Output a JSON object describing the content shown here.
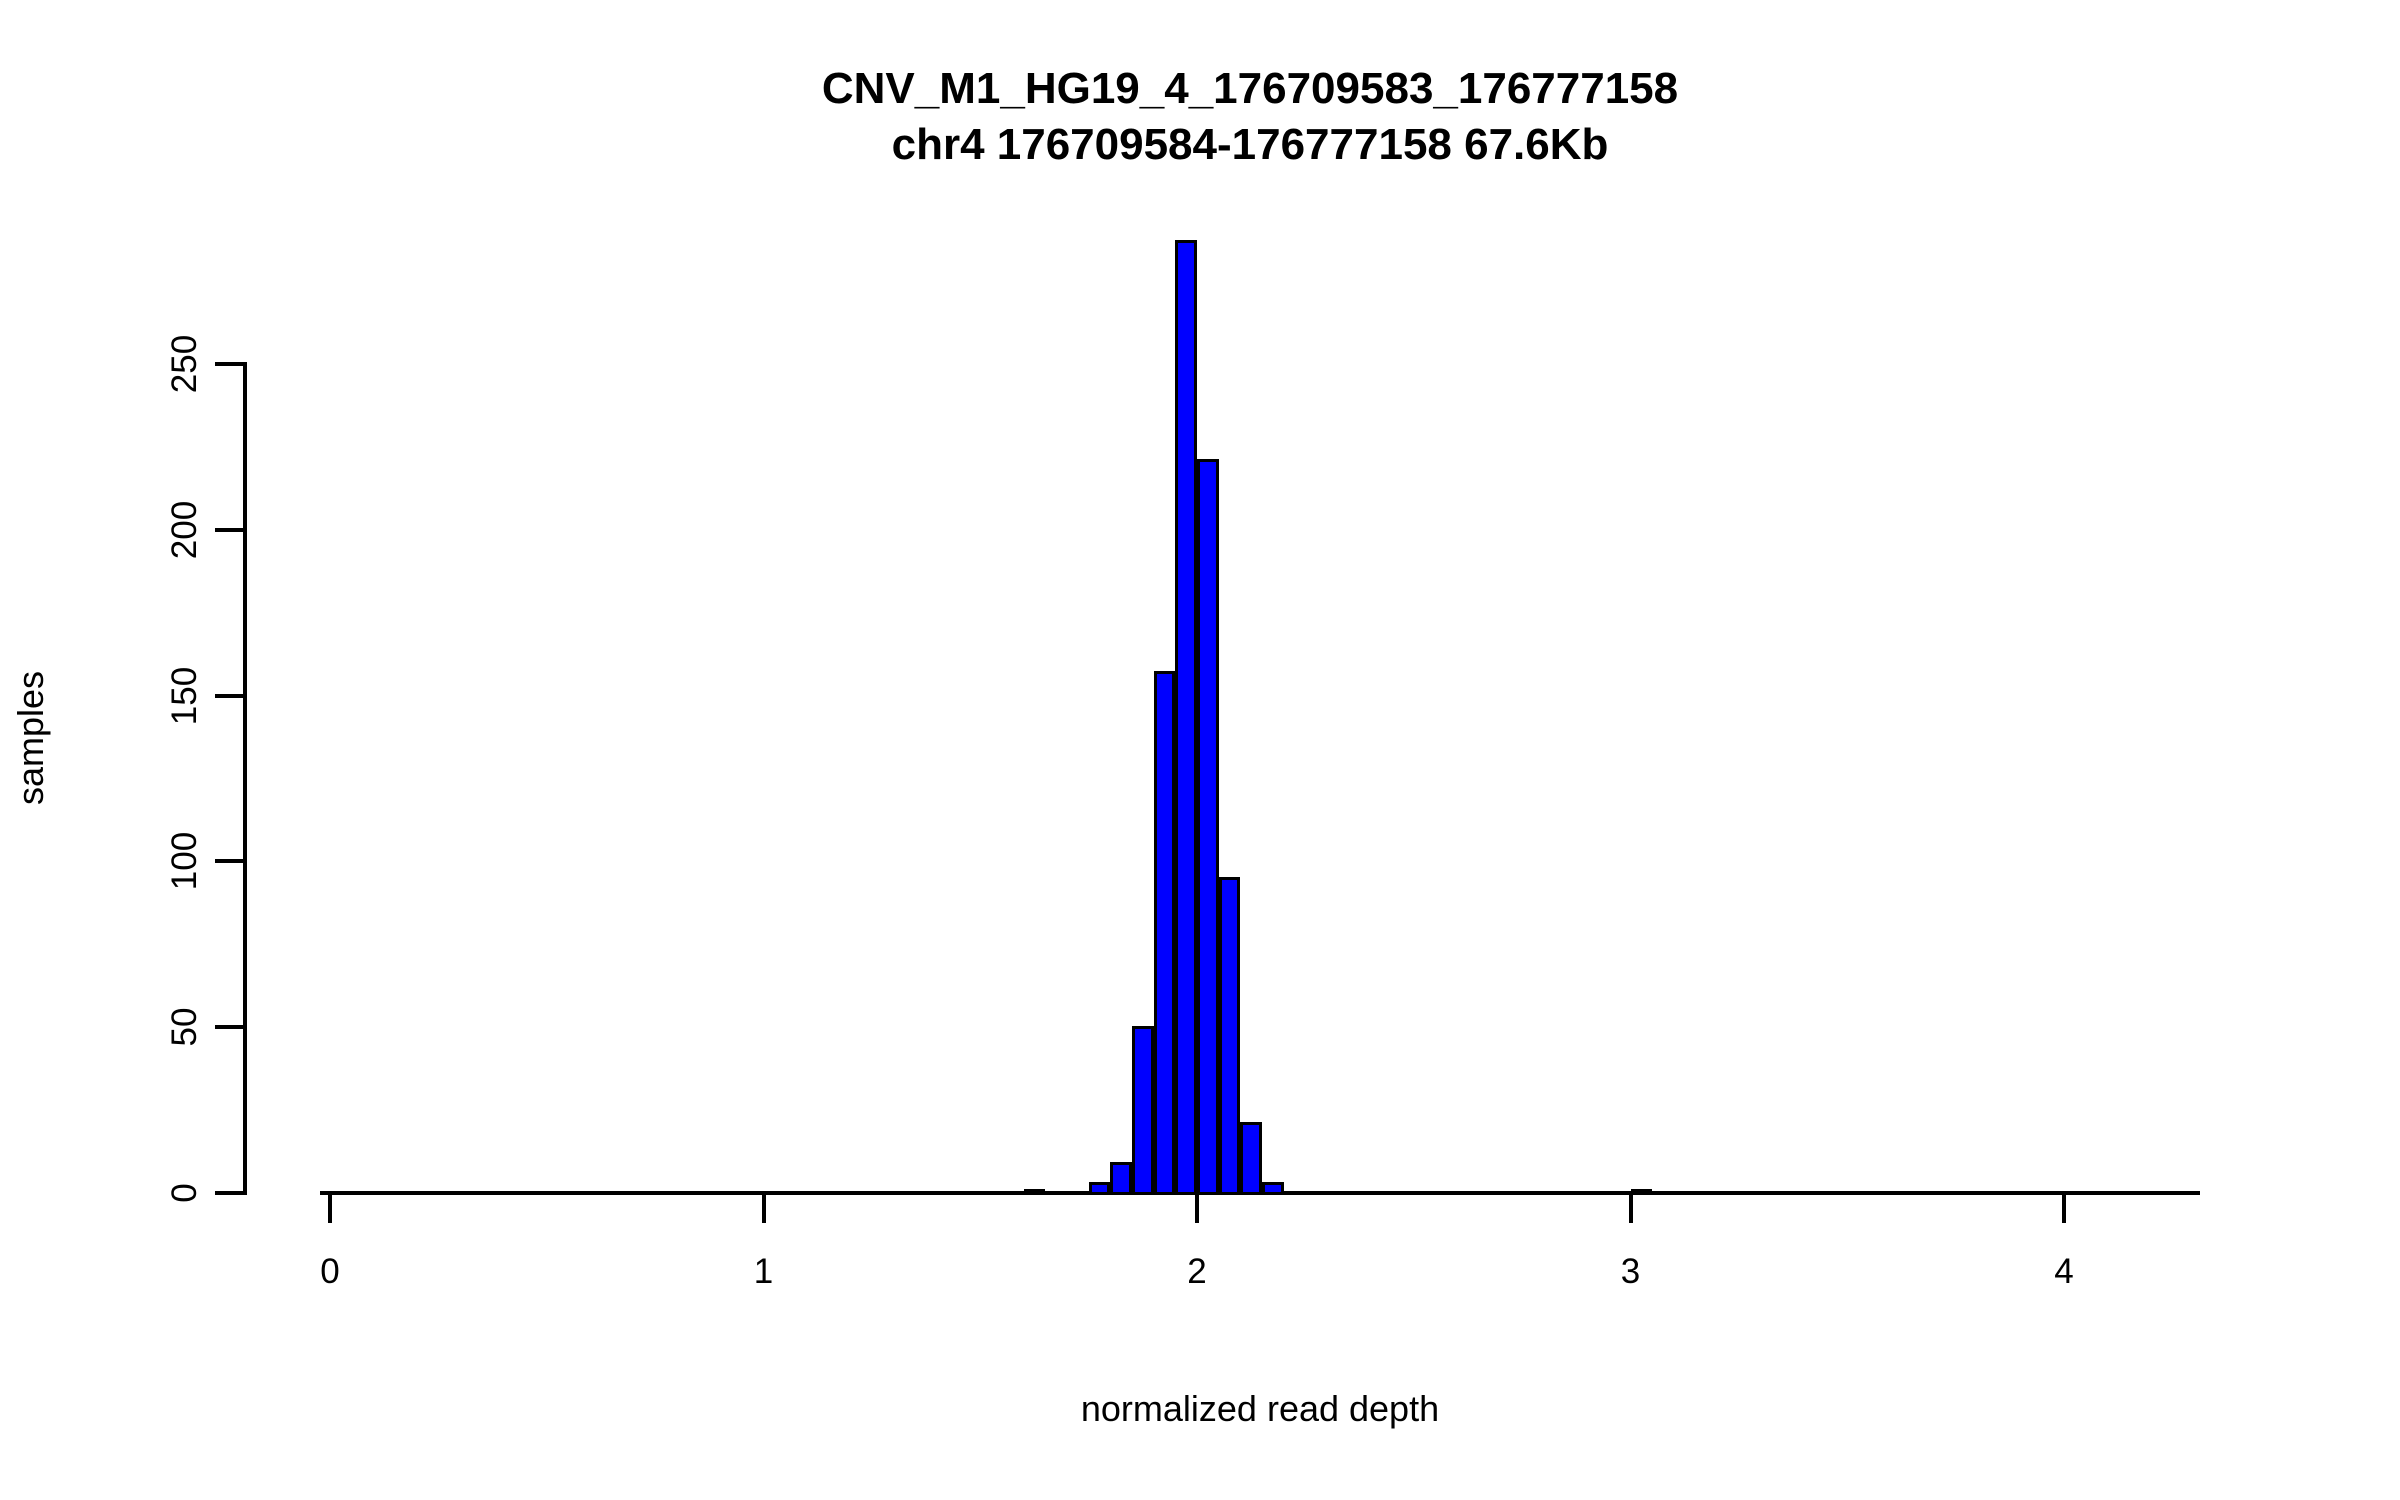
{
  "title": {
    "line1": "CNV_M1_HG19_4_176709583_176777158",
    "line2": "chr4 176709584-176777158 67.6Kb"
  },
  "axes": {
    "x": {
      "label": "normalized read depth",
      "ticks": [
        0,
        1,
        2,
        3,
        4
      ],
      "range": [
        0,
        4.3
      ]
    },
    "y": {
      "label": "samples",
      "ticks": [
        0,
        50,
        100,
        150,
        200,
        250
      ],
      "range": [
        0,
        287
      ]
    }
  },
  "colors": {
    "bar_fill": "#0000FF",
    "bar_border": "#000000",
    "axis": "#000000",
    "background": "#FFFFFF",
    "text": "#000000"
  },
  "chart_data": {
    "type": "bar",
    "title": "CNV_M1_HG19_4_176709583_176777158",
    "subtitle": "chr4 176709584-176777158 67.6Kb",
    "xlabel": "normalized read depth",
    "ylabel": "samples",
    "xlim": [
      0,
      4.3
    ],
    "ylim": [
      0,
      287
    ],
    "grid": false,
    "legend": false,
    "bin_width": 0.05,
    "bins": [
      {
        "x0": 1.6,
        "x1": 1.65,
        "count": 1
      },
      {
        "x0": 1.65,
        "x1": 1.7,
        "count": 0
      },
      {
        "x0": 1.7,
        "x1": 1.75,
        "count": 0
      },
      {
        "x0": 1.75,
        "x1": 1.8,
        "count": 3
      },
      {
        "x0": 1.8,
        "x1": 1.85,
        "count": 9
      },
      {
        "x0": 1.85,
        "x1": 1.9,
        "count": 50
      },
      {
        "x0": 1.9,
        "x1": 1.95,
        "count": 157
      },
      {
        "x0": 1.95,
        "x1": 2.0,
        "count": 287
      },
      {
        "x0": 2.0,
        "x1": 2.05,
        "count": 221
      },
      {
        "x0": 2.05,
        "x1": 2.1,
        "count": 95
      },
      {
        "x0": 2.1,
        "x1": 2.15,
        "count": 21
      },
      {
        "x0": 2.15,
        "x1": 2.2,
        "count": 3
      },
      {
        "x0": 3.0,
        "x1": 3.05,
        "count": 1
      }
    ]
  }
}
